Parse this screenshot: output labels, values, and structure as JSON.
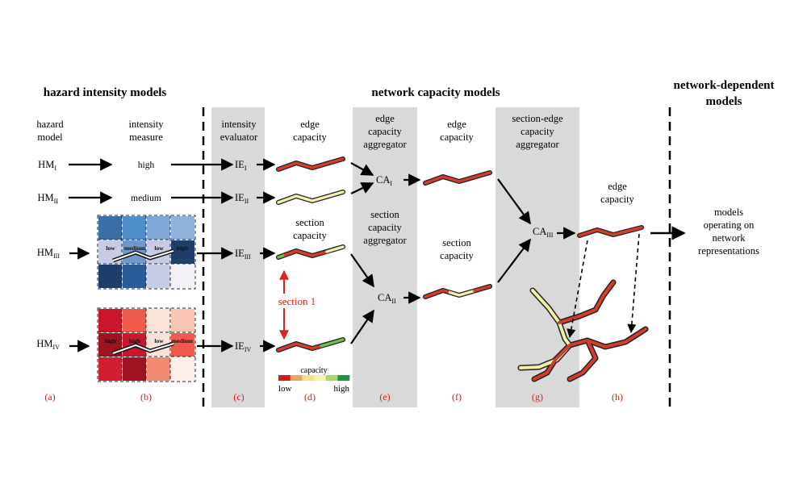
{
  "headers": {
    "hazard": "hazard intensity models",
    "network": "network capacity models",
    "dependent_line1": "network-dependent",
    "dependent_line2": "models"
  },
  "columns": {
    "hazard_model": [
      "hazard",
      "model"
    ],
    "intensity_measure": [
      "intensity",
      "measure"
    ],
    "intensity_evaluator": [
      "intensity",
      "evaluator"
    ],
    "edge_capacity_d": [
      "edge",
      "capacity"
    ],
    "edge_capacity_aggregator": [
      "edge",
      "capacity",
      "aggregator"
    ],
    "edge_capacity_f": [
      "edge",
      "capacity"
    ],
    "section_edge_aggregator": [
      "section-edge",
      "capacity",
      "aggregator"
    ],
    "edge_capacity_h": [
      "edge",
      "capacity"
    ],
    "section_capacity_d": [
      "section",
      "capacity"
    ],
    "section_capacity_aggregator": [
      "section",
      "capacity",
      "aggregator"
    ],
    "section_capacity_f": [
      "section",
      "capacity"
    ],
    "models_operating": [
      "models",
      "operating on",
      "network",
      "representations"
    ]
  },
  "hazard_models": {
    "hm1": {
      "base": "HM",
      "sub": "I"
    },
    "hm2": {
      "base": "HM",
      "sub": "II"
    },
    "hm3": {
      "base": "HM",
      "sub": "III"
    },
    "hm4": {
      "base": "HM",
      "sub": "IV"
    }
  },
  "intensity_values": {
    "hm1": "high",
    "hm2": "medium"
  },
  "grid_blue_labels": [
    "low",
    "medium",
    "low",
    "high"
  ],
  "grid_red_labels": [
    "high",
    "high",
    "low",
    "medium"
  ],
  "evaluators": {
    "ie1": {
      "base": "IE",
      "sub": "I"
    },
    "ie2": {
      "base": "IE",
      "sub": "II"
    },
    "ie3": {
      "base": "IE",
      "sub": "III"
    },
    "ie4": {
      "base": "IE",
      "sub": "IV"
    }
  },
  "aggregators": {
    "ca1": {
      "base": "CA",
      "sub": "I"
    },
    "ca2": {
      "base": "CA",
      "sub": "II"
    },
    "ca3": {
      "base": "CA",
      "sub": "III"
    }
  },
  "section_label": "section 1",
  "legend": {
    "title": "capacity",
    "low": "low",
    "high": "high",
    "colors": [
      "#d7191c",
      "#f0a35a",
      "#f7e08a",
      "#f4f4b0",
      "#a6d96a",
      "#1a9641"
    ]
  },
  "panel_labels": [
    "(a)",
    "(b)",
    "(c)",
    "(d)",
    "(e)",
    "(f)",
    "(g)",
    "(h)"
  ],
  "colors": {
    "panel_gray": "#d9d9d9",
    "edge_red": "#d73b2b",
    "edge_yellow": "#f5f0a8",
    "edge_green": "#6fbf4a",
    "panel_label_red": "#d7191c",
    "section_red": "#e02020"
  }
}
